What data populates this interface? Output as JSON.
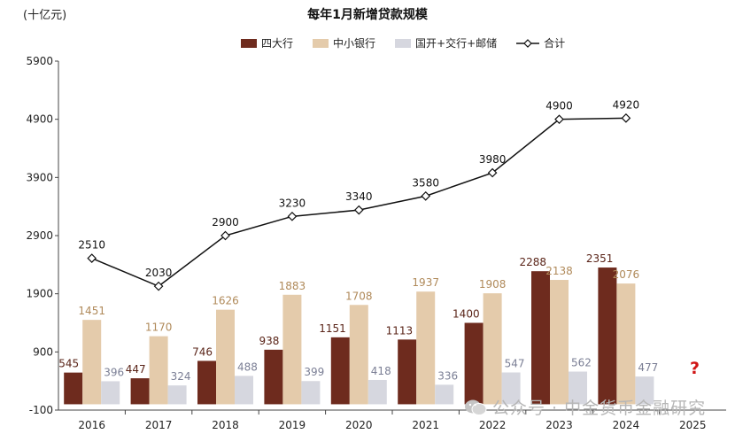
{
  "unit_label": "(十亿元)",
  "watermark": "公众号 · 中金货币金融研究",
  "unknown_marker": "?",
  "colors": {
    "big4": "#6e2b1e",
    "small_mid": "#e4cbab",
    "policy": "#d6d7df",
    "total_line": "#111111",
    "big4_label": "#5a2418",
    "small_mid_label": "#b08a5a",
    "policy_label": "#7b7f95"
  },
  "chart_data": {
    "type": "bar",
    "title": "每年1月新增贷款规模",
    "categories": [
      "2016",
      "2017",
      "2018",
      "2019",
      "2020",
      "2021",
      "2022",
      "2023",
      "2024",
      "2025"
    ],
    "ylim": [
      -100,
      5900
    ],
    "yticks": [
      -100,
      900,
      1900,
      2900,
      3900,
      4900,
      5900
    ],
    "grid": false,
    "legend_position": "top",
    "series": [
      {
        "name": "四大行",
        "kind": "bar",
        "values": [
          545,
          447,
          746,
          938,
          1151,
          1113,
          1400,
          2288,
          2351,
          null
        ]
      },
      {
        "name": "中小银行",
        "kind": "bar",
        "values": [
          1451,
          1170,
          1626,
          1883,
          1708,
          1937,
          1908,
          2138,
          2076,
          null
        ]
      },
      {
        "name": "国开+交行+邮储",
        "kind": "bar",
        "values": [
          396,
          324,
          488,
          399,
          418,
          336,
          547,
          562,
          477,
          null
        ]
      },
      {
        "name": "合计",
        "kind": "line",
        "values": [
          2510,
          2030,
          2900,
          3230,
          3340,
          3580,
          3980,
          4900,
          4920,
          null
        ]
      }
    ]
  }
}
